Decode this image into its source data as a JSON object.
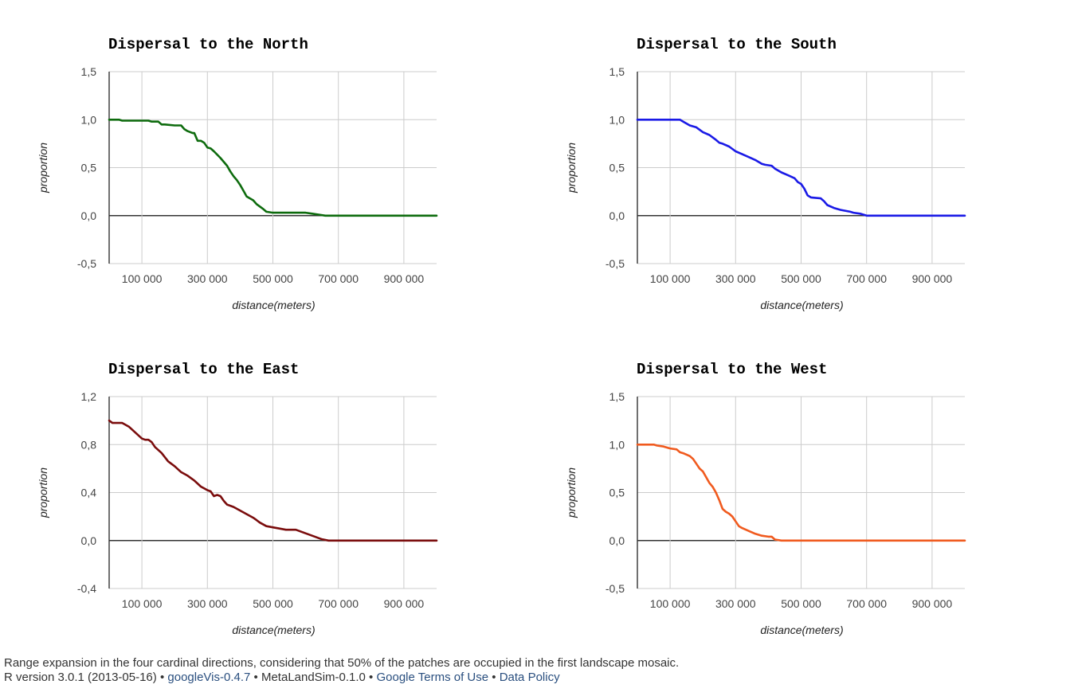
{
  "chart_data": [
    {
      "type": "line",
      "title": "Dispersal to the North",
      "xlabel": "distance(meters)",
      "ylabel": "proportion",
      "xlim": [
        0,
        1000000
      ],
      "ylim": [
        -0.5,
        1.5
      ],
      "yticks": [
        "1,5",
        "1,0",
        "0,5",
        "0,0",
        "-0,5"
      ],
      "ytick_values": [
        1.5,
        1.0,
        0.5,
        0.0,
        -0.5
      ],
      "xticks": [
        "100 000",
        "300 000",
        "500 000",
        "700 000",
        "900 000"
      ],
      "xtick_values": [
        100000,
        300000,
        500000,
        700000,
        900000
      ],
      "grid": true,
      "series": [
        {
          "color": "#0d6b0d",
          "x": [
            0,
            30000,
            40000,
            80000,
            120000,
            130000,
            150000,
            160000,
            170000,
            200000,
            220000,
            230000,
            240000,
            255000,
            260000,
            270000,
            280000,
            290000,
            300000,
            310000,
            320000,
            340000,
            360000,
            370000,
            380000,
            390000,
            400000,
            410000,
            420000,
            440000,
            450000,
            470000,
            480000,
            500000,
            520000,
            600000,
            620000,
            640000,
            660000,
            1000000
          ],
          "y": [
            1.0,
            1.0,
            0.99,
            0.99,
            0.99,
            0.98,
            0.98,
            0.95,
            0.95,
            0.94,
            0.94,
            0.9,
            0.88,
            0.86,
            0.86,
            0.78,
            0.78,
            0.76,
            0.71,
            0.7,
            0.67,
            0.6,
            0.52,
            0.46,
            0.41,
            0.37,
            0.32,
            0.26,
            0.2,
            0.16,
            0.12,
            0.07,
            0.04,
            0.03,
            0.03,
            0.03,
            0.02,
            0.01,
            0.0,
            0.0
          ]
        }
      ]
    },
    {
      "type": "line",
      "title": "Dispersal to the South",
      "xlabel": "distance(meters)",
      "ylabel": "proportion",
      "xlim": [
        0,
        1000000
      ],
      "ylim": [
        -0.5,
        1.5
      ],
      "yticks": [
        "1,5",
        "1,0",
        "0,5",
        "0,0",
        "-0,5"
      ],
      "ytick_values": [
        1.5,
        1.0,
        0.5,
        0.0,
        -0.5
      ],
      "xticks": [
        "100 000",
        "300 000",
        "500 000",
        "700 000",
        "900 000"
      ],
      "xtick_values": [
        100000,
        300000,
        500000,
        700000,
        900000
      ],
      "grid": true,
      "series": [
        {
          "color": "#1a1ae6",
          "x": [
            0,
            130000,
            140000,
            160000,
            180000,
            200000,
            220000,
            240000,
            250000,
            260000,
            280000,
            300000,
            320000,
            340000,
            360000,
            380000,
            390000,
            410000,
            420000,
            440000,
            460000,
            480000,
            490000,
            500000,
            510000,
            520000,
            530000,
            560000,
            570000,
            580000,
            600000,
            620000,
            650000,
            660000,
            680000,
            700000,
            1000000
          ],
          "y": [
            1.0,
            1.0,
            0.98,
            0.94,
            0.92,
            0.87,
            0.84,
            0.79,
            0.76,
            0.75,
            0.72,
            0.67,
            0.64,
            0.61,
            0.58,
            0.54,
            0.53,
            0.52,
            0.49,
            0.45,
            0.42,
            0.39,
            0.35,
            0.33,
            0.28,
            0.21,
            0.19,
            0.18,
            0.15,
            0.11,
            0.08,
            0.06,
            0.04,
            0.03,
            0.02,
            0.0,
            0.0
          ]
        }
      ]
    },
    {
      "type": "line",
      "title": "Dispersal to the East",
      "xlabel": "distance(meters)",
      "ylabel": "proportion",
      "xlim": [
        0,
        1000000
      ],
      "ylim": [
        -0.4,
        1.2
      ],
      "yticks": [
        "1,2",
        "0,8",
        "0,4",
        "0,0",
        "-0,4"
      ],
      "ytick_values": [
        1.2,
        0.8,
        0.4,
        0.0,
        -0.4
      ],
      "xticks": [
        "100 000",
        "300 000",
        "500 000",
        "700 000",
        "900 000"
      ],
      "xtick_values": [
        100000,
        300000,
        500000,
        700000,
        900000
      ],
      "grid": true,
      "series": [
        {
          "color": "#7a0c0c",
          "x": [
            0,
            10000,
            40000,
            60000,
            80000,
            100000,
            110000,
            120000,
            130000,
            140000,
            160000,
            180000,
            200000,
            220000,
            240000,
            260000,
            280000,
            300000,
            310000,
            320000,
            330000,
            340000,
            350000,
            360000,
            380000,
            400000,
            420000,
            440000,
            450000,
            460000,
            480000,
            500000,
            520000,
            540000,
            570000,
            580000,
            600000,
            610000,
            620000,
            640000,
            650000,
            670000,
            1000000
          ],
          "y": [
            1.0,
            0.98,
            0.98,
            0.95,
            0.9,
            0.85,
            0.84,
            0.84,
            0.82,
            0.78,
            0.73,
            0.66,
            0.62,
            0.57,
            0.54,
            0.5,
            0.45,
            0.42,
            0.41,
            0.37,
            0.38,
            0.37,
            0.33,
            0.3,
            0.28,
            0.25,
            0.22,
            0.19,
            0.17,
            0.15,
            0.12,
            0.11,
            0.1,
            0.09,
            0.09,
            0.08,
            0.06,
            0.05,
            0.04,
            0.02,
            0.01,
            0.0,
            0.0
          ]
        }
      ]
    },
    {
      "type": "line",
      "title": "Dispersal to the West",
      "xlabel": "distance(meters)",
      "ylabel": "proportion",
      "xlim": [
        0,
        1000000
      ],
      "ylim": [
        -0.5,
        1.5
      ],
      "yticks": [
        "1,5",
        "1,0",
        "0,5",
        "0,0",
        "-0,5"
      ],
      "ytick_values": [
        1.5,
        1.0,
        0.5,
        0.0,
        -0.5
      ],
      "xticks": [
        "100 000",
        "300 000",
        "500 000",
        "700 000",
        "900 000"
      ],
      "xtick_values": [
        100000,
        300000,
        500000,
        700000,
        900000
      ],
      "grid": true,
      "series": [
        {
          "color": "#f05a1e",
          "x": [
            0,
            50000,
            60000,
            80000,
            100000,
            120000,
            130000,
            140000,
            160000,
            170000,
            180000,
            190000,
            200000,
            210000,
            220000,
            230000,
            240000,
            250000,
            260000,
            270000,
            280000,
            290000,
            300000,
            310000,
            320000,
            340000,
            360000,
            380000,
            400000,
            410000,
            420000,
            440000,
            1000000
          ],
          "y": [
            1.0,
            1.0,
            0.99,
            0.98,
            0.96,
            0.95,
            0.92,
            0.91,
            0.88,
            0.85,
            0.8,
            0.75,
            0.72,
            0.66,
            0.6,
            0.56,
            0.5,
            0.42,
            0.33,
            0.3,
            0.28,
            0.25,
            0.2,
            0.15,
            0.13,
            0.1,
            0.07,
            0.05,
            0.04,
            0.04,
            0.01,
            0.0,
            0.0
          ]
        }
      ]
    }
  ],
  "footer": {
    "caption": "Range expansion in the four cardinal directions, considering that 50% of the patches are occupied in the first landscape mosaic.",
    "r_version": "R version 3.0.1 (2013-05-16)",
    "bullet": "•",
    "googlevis": "googleVis-0.4.7",
    "metalandsim": "MetaLandSim-0.1.0",
    "terms": "Google Terms of Use",
    "policy": "Data Policy"
  }
}
